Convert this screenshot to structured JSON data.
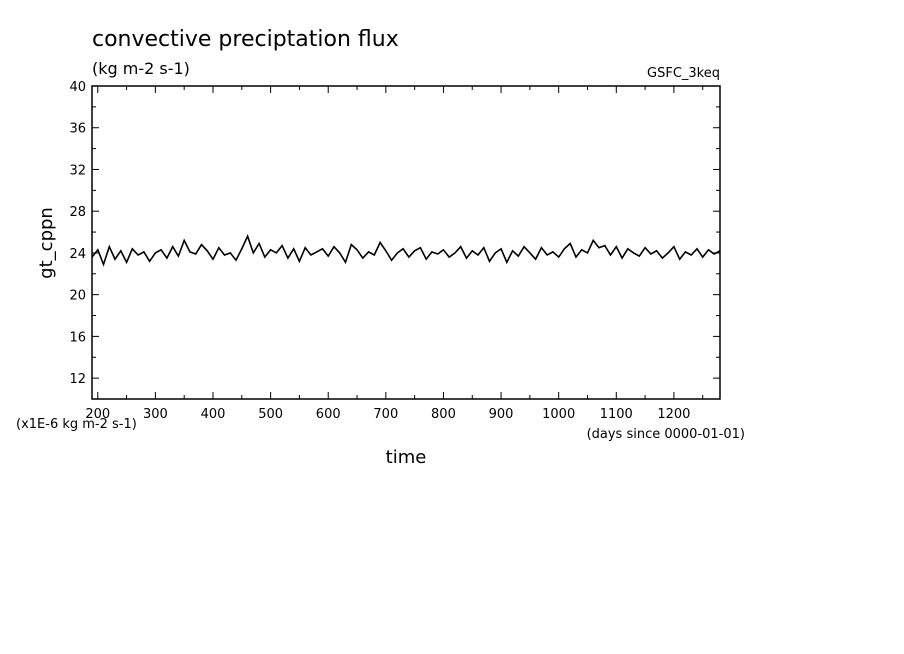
{
  "chart_data": {
    "type": "line",
    "title": "convective preciptation flux",
    "units": "(kg m-2 s-1)",
    "source": "GSFC_3keq",
    "xlabel": "time",
    "x_units": "(days since 0000-01-01)",
    "ylabel": "gt_cppn",
    "y_scale_note": "(x1E-6 kg m-2 s-1)",
    "xlim": [
      190,
      1280
    ],
    "ylim": [
      10,
      40
    ],
    "x_ticks": [
      200,
      300,
      400,
      500,
      600,
      700,
      800,
      900,
      1000,
      1100,
      1200
    ],
    "y_ticks": [
      12,
      16,
      20,
      24,
      28,
      32,
      36,
      40
    ],
    "series": [
      {
        "name": "",
        "color": "#000000",
        "x": [
          190,
          200,
          210,
          220,
          230,
          240,
          250,
          260,
          270,
          280,
          290,
          300,
          310,
          320,
          330,
          340,
          350,
          360,
          370,
          380,
          390,
          400,
          410,
          420,
          430,
          440,
          450,
          460,
          470,
          480,
          490,
          500,
          510,
          520,
          530,
          540,
          550,
          560,
          570,
          580,
          590,
          600,
          610,
          620,
          630,
          640,
          650,
          660,
          670,
          680,
          690,
          700,
          710,
          720,
          730,
          740,
          750,
          760,
          770,
          780,
          790,
          800,
          810,
          820,
          830,
          840,
          850,
          860,
          870,
          880,
          890,
          900,
          910,
          920,
          930,
          940,
          950,
          960,
          970,
          980,
          990,
          1000,
          1010,
          1020,
          1030,
          1040,
          1050,
          1060,
          1070,
          1080,
          1090,
          1100,
          1110,
          1120,
          1130,
          1140,
          1150,
          1160,
          1170,
          1180,
          1190,
          1200,
          1210,
          1220,
          1230,
          1240,
          1250,
          1260,
          1270,
          1280
        ],
        "values": [
          23.6,
          24.3,
          22.9,
          24.6,
          23.4,
          24.2,
          23.1,
          24.4,
          23.8,
          24.1,
          23.2,
          24.0,
          24.3,
          23.5,
          24.6,
          23.7,
          25.2,
          24.1,
          23.9,
          24.8,
          24.2,
          23.4,
          24.5,
          23.8,
          24.0,
          23.3,
          24.4,
          25.6,
          24.0,
          24.9,
          23.6,
          24.3,
          24.0,
          24.7,
          23.5,
          24.4,
          23.2,
          24.5,
          23.8,
          24.1,
          24.4,
          23.7,
          24.6,
          24.0,
          23.1,
          24.8,
          24.3,
          23.5,
          24.1,
          23.8,
          25.0,
          24.2,
          23.3,
          24.0,
          24.4,
          23.6,
          24.2,
          24.5,
          23.4,
          24.1,
          23.9,
          24.3,
          23.6,
          24.0,
          24.6,
          23.5,
          24.2,
          23.8,
          24.5,
          23.2,
          24.0,
          24.4,
          23.1,
          24.2,
          23.7,
          24.6,
          24.0,
          23.4,
          24.5,
          23.8,
          24.1,
          23.6,
          24.4,
          24.9,
          23.6,
          24.3,
          24.0,
          25.2,
          24.5,
          24.7,
          23.8,
          24.6,
          23.5,
          24.4,
          24.0,
          23.7,
          24.5,
          23.9,
          24.2,
          23.5,
          24.0,
          24.6,
          23.4,
          24.1,
          23.8,
          24.4,
          23.6,
          24.3,
          23.9,
          24.2
        ]
      }
    ]
  }
}
